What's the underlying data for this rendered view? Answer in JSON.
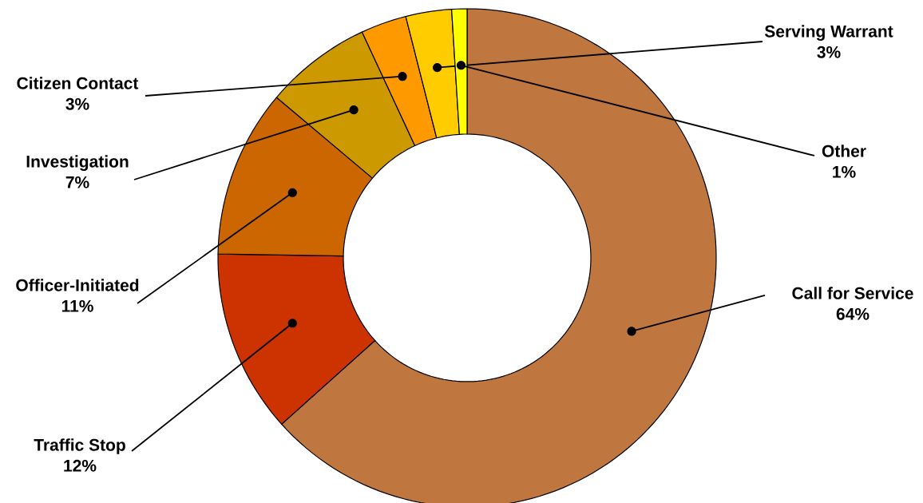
{
  "chart_data": {
    "type": "donut",
    "categories": [
      "Call for Service",
      "Traffic Stop",
      "Officer-Initiated",
      "Investigation",
      "Citizen Contact",
      "Serving Warrant",
      "Other"
    ],
    "values": [
      64,
      12,
      11,
      7,
      3,
      3,
      1
    ],
    "value_labels": [
      "64%",
      "12%",
      "11%",
      "7%",
      "3%",
      "3%",
      "1%"
    ],
    "colors": [
      "#c0763f",
      "#cc3300",
      "#cc6600",
      "#cc9900",
      "#ff9900",
      "#ffcc00",
      "#ffff00"
    ]
  }
}
